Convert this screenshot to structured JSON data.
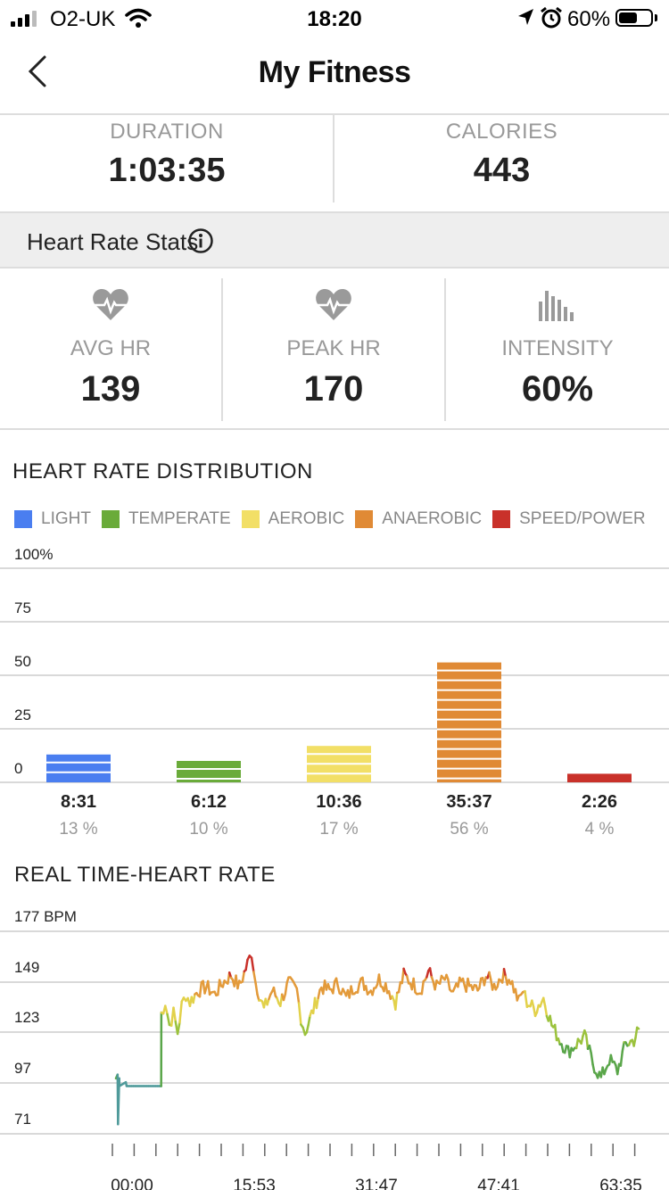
{
  "status": {
    "carrier": "O2-UK",
    "time": "18:20",
    "battery": "60%",
    "battery_level": 0.6
  },
  "nav": {
    "title": "My Fitness"
  },
  "summary": {
    "duration_label": "DURATION",
    "duration_value": "1:03:35",
    "calories_label": "CALORIES",
    "calories_value": "443"
  },
  "heart_section": {
    "title": "Heart Rate Stats"
  },
  "stats": [
    {
      "label": "AVG HR",
      "value": "139",
      "icon": "heart-rate-icon"
    },
    {
      "label": "PEAK HR",
      "value": "170",
      "icon": "heart-rate-icon"
    },
    {
      "label": "INTENSITY",
      "value": "60%",
      "icon": "bar-chart-icon"
    }
  ],
  "distribution": {
    "title": "HEART RATE DISTRIBUTION",
    "legend": [
      {
        "label": "LIGHT",
        "color": "#4a7ef0"
      },
      {
        "label": "TEMPERATE",
        "color": "#6aab3a"
      },
      {
        "label": "AEROBIC",
        "color": "#f2df66"
      },
      {
        "label": "ANAEROBIC",
        "color": "#e08a35"
      },
      {
        "label": "SPEED/POWER",
        "color": "#c9312a"
      }
    ]
  },
  "realtime": {
    "title": "REAL TIME-HEART RATE"
  },
  "chart_data": [
    {
      "type": "bar",
      "title": "HEART RATE DISTRIBUTION",
      "categories": [
        "LIGHT",
        "TEMPERATE",
        "AEROBIC",
        "ANAEROBIC",
        "SPEED/POWER"
      ],
      "values": [
        13,
        10,
        17,
        56,
        4
      ],
      "durations": [
        "8:31",
        "6:12",
        "10:36",
        "35:37",
        "2:26"
      ],
      "percent_labels": [
        "13 %",
        "10 %",
        "17 %",
        "56 %",
        "4 %"
      ],
      "colors": [
        "#4a7ef0",
        "#6aab3a",
        "#f2df66",
        "#e08a35",
        "#c9312a"
      ],
      "y_ticks": [
        "100%",
        "75",
        "50",
        "25",
        "0"
      ],
      "ylim": [
        0,
        100
      ],
      "legend_position": "top-left",
      "grid": true
    },
    {
      "type": "line",
      "title": "REAL TIME-HEART RATE",
      "y_ticks": [
        "177 BPM",
        "149",
        "123",
        "97",
        "71"
      ],
      "x_ticks": [
        "00:00",
        "15:53",
        "31:47",
        "47:41",
        "63:35"
      ],
      "ylim": [
        71,
        177
      ],
      "xlim": [
        0,
        63.58
      ],
      "grid": true,
      "x": [
        0.0,
        0.2,
        0.25,
        0.4,
        0.42,
        1.2,
        1.3,
        1.5,
        2.5,
        4.0,
        5.5,
        5.52,
        6.0,
        6.5,
        7.0,
        7.5,
        8.0,
        8.5,
        9.0,
        10.0,
        11.0,
        12.0,
        13.0,
        14.0,
        15.0,
        16.0,
        16.5,
        17.0,
        18.0,
        19.0,
        20.0,
        21.0,
        22.0,
        22.5,
        23.0,
        24.0,
        25.0,
        26.0,
        27.0,
        28.0,
        29.0,
        30.0,
        31.0,
        32.0,
        33.0,
        34.0,
        35.0,
        36.0,
        37.0,
        38.0,
        39.0,
        40.0,
        41.0,
        42.0,
        43.0,
        44.0,
        45.0,
        46.0,
        47.0,
        48.0,
        49.0,
        49.5,
        50.0,
        51.0,
        52.0,
        53.0,
        54.0,
        55.0,
        56.0,
        57.0,
        58.0,
        59.0,
        60.0,
        61.0,
        62.0,
        63.0,
        63.58
      ],
      "values": [
        100,
        102,
        76,
        100,
        96,
        98,
        96,
        96,
        96,
        96,
        96,
        134,
        140,
        128,
        134,
        124,
        138,
        144,
        140,
        146,
        148,
        144,
        150,
        154,
        148,
        160,
        166,
        150,
        136,
        146,
        140,
        150,
        146,
        132,
        124,
        136,
        148,
        146,
        150,
        142,
        148,
        150,
        146,
        152,
        148,
        140,
        154,
        150,
        146,
        156,
        148,
        152,
        144,
        150,
        148,
        146,
        154,
        148,
        154,
        152,
        140,
        146,
        140,
        136,
        142,
        128,
        120,
        114,
        118,
        122,
        108,
        100,
        110,
        104,
        118,
        120,
        126
      ]
    }
  ]
}
